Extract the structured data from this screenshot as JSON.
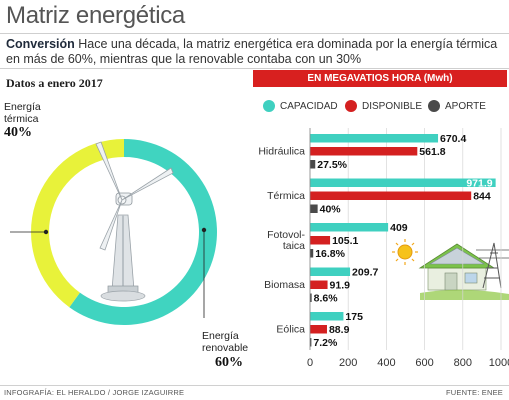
{
  "title": "Matriz energética",
  "subtitle_bold": "Conversión",
  "subtitle_text": " Hace una década, la matriz energética era dominada por la energía térmica en más de 60%, mientras que la renovable contaba con un 30%",
  "left_date": "Datos a enero 2017",
  "bar_header": "EN MEGAVATIOS HORA (Mwh)",
  "footer_left": "INFOGRAFÍA: EL HERALDO / JORGE IZAGUIRRE",
  "footer_right": "FUENTE: ENEE",
  "colors": {
    "capacidad": "#3fd0c0",
    "disponible": "#d42020",
    "aporte": "#4a4a4a",
    "termica": "#e8f23a",
    "renovable": "#40d4c0",
    "header": "#d8201f"
  },
  "chart_data": [
    {
      "type": "pie",
      "style": "donut",
      "slices": [
        {
          "label": "Energía térmica",
          "label_lines": [
            "Energía",
            "térmica"
          ],
          "value": 40,
          "value_label": "40%",
          "color": "#e8f23a"
        },
        {
          "label": "Energía renovable",
          "label_lines": [
            "Energía",
            "renovable"
          ],
          "value": 60,
          "value_label": "60%",
          "color": "#40d4c0"
        }
      ]
    },
    {
      "type": "bar",
      "orientation": "horizontal",
      "categories": [
        "Hidráulica",
        "Térmica",
        "Fotovoltaica",
        "Biomasa",
        "Eólica"
      ],
      "category_labels": [
        [
          "Hidráulica"
        ],
        [
          "Térmica"
        ],
        [
          "Fotovol-",
          "taica"
        ],
        [
          "Biomasa"
        ],
        [
          "Eólica"
        ]
      ],
      "series": [
        {
          "name": "CAPACIDAD",
          "color": "#3fd0c0",
          "values": [
            670.4,
            971.9,
            409,
            209.7,
            175
          ],
          "labels": [
            "670.4",
            "971.9",
            "409",
            "209.7",
            "175"
          ]
        },
        {
          "name": "DISPONIBLE",
          "color": "#d42020",
          "values": [
            561.8,
            844,
            105.1,
            91.9,
            88.9
          ],
          "labels": [
            "561.8",
            "844",
            "105.1",
            "91.9",
            "88.9"
          ]
        },
        {
          "name": "APORTE",
          "color": "#4a4a4a",
          "values": [
            27.5,
            40,
            16.8,
            8.6,
            7.2
          ],
          "labels": [
            "27.5%",
            "40%",
            "16.8%",
            "8.6%",
            "7.2%"
          ],
          "unit": "%"
        }
      ],
      "xlim": [
        0,
        1000
      ],
      "xticks": [
        0,
        200,
        400,
        600,
        800,
        1000
      ],
      "grid": true,
      "legend": "top"
    }
  ]
}
